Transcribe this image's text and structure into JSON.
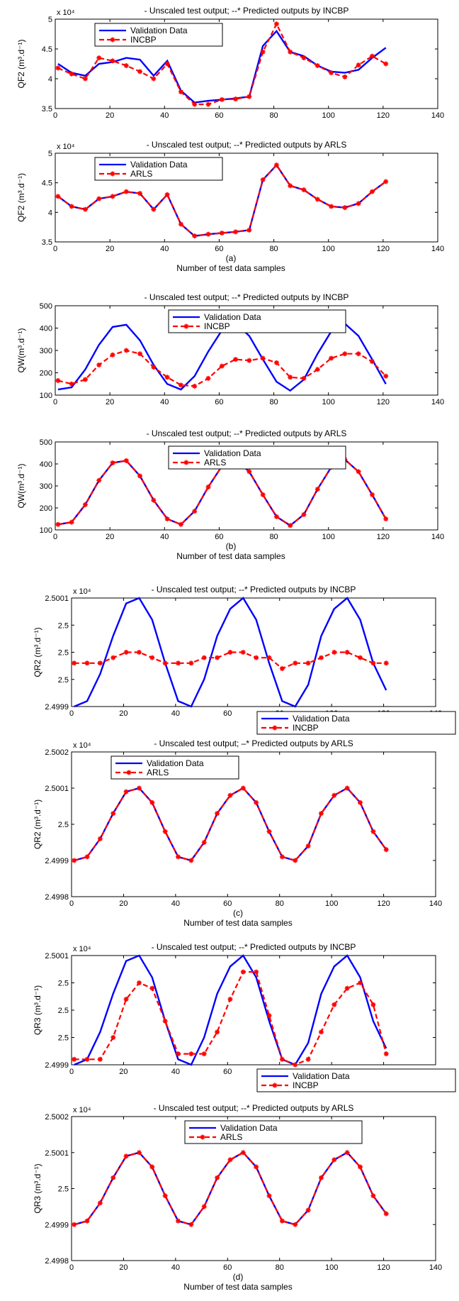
{
  "chart_data": [
    {
      "type": "line",
      "title": "- Unscaled test output; --* Predicted outputs by INCBP",
      "ylabel": "QF2 (m³.d⁻¹)",
      "yexp": "x 10⁴",
      "xlabel": "",
      "panel_caption": "",
      "xlim": [
        0,
        140
      ],
      "ylim": [
        3.5,
        5
      ],
      "xticks": [
        0,
        20,
        40,
        60,
        80,
        100,
        120,
        140
      ],
      "yticks": [
        3.5,
        4,
        4.5,
        5
      ],
      "ytick_labels": [
        "3.5",
        "4",
        "4.5",
        "5"
      ],
      "legend_position": "top-left",
      "x": [
        1,
        6,
        11,
        16,
        21,
        26,
        31,
        36,
        41,
        46,
        51,
        56,
        61,
        66,
        71,
        76,
        81,
        86,
        91,
        96,
        101,
        106,
        111,
        116,
        121
      ],
      "series": [
        {
          "name": "Validation Data",
          "color": "#0000ff",
          "style": "solid",
          "values": [
            4.25,
            4.1,
            4.05,
            4.25,
            4.28,
            4.35,
            4.32,
            4.05,
            4.3,
            3.8,
            3.6,
            3.63,
            3.65,
            3.67,
            3.7,
            4.55,
            4.8,
            4.45,
            4.38,
            4.22,
            4.12,
            4.1,
            4.15,
            4.35,
            4.52
          ]
        },
        {
          "name": "INCBP",
          "color": "#ff0000",
          "style": "dashed",
          "marker": "*",
          "values": [
            4.18,
            4.08,
            4.0,
            4.35,
            4.3,
            4.22,
            4.12,
            4.0,
            4.25,
            3.78,
            3.57,
            3.57,
            3.65,
            3.66,
            3.7,
            4.45,
            4.92,
            4.45,
            4.35,
            4.22,
            4.1,
            4.03,
            4.23,
            4.38,
            4.25
          ]
        }
      ]
    },
    {
      "type": "line",
      "title": "- Unscaled test output; --* Predicted outputs by ARLS",
      "ylabel": "QF2 (m³.d⁻¹)",
      "yexp": "x 10⁴",
      "xlabel": "Number of test data samples",
      "panel_caption": "(a)",
      "xlim": [
        0,
        140
      ],
      "ylim": [
        3.5,
        5
      ],
      "xticks": [
        0,
        20,
        40,
        60,
        80,
        100,
        120,
        140
      ],
      "yticks": [
        3.5,
        4,
        4.5,
        5
      ],
      "ytick_labels": [
        "3.5",
        "4",
        "4.5",
        "5"
      ],
      "legend_position": "top-left",
      "x": [
        1,
        6,
        11,
        16,
        21,
        26,
        31,
        36,
        41,
        46,
        51,
        56,
        61,
        66,
        71,
        76,
        81,
        86,
        91,
        96,
        101,
        106,
        111,
        116,
        121
      ],
      "series": [
        {
          "name": "Validation Data",
          "color": "#0000ff",
          "style": "solid",
          "values": [
            4.27,
            4.1,
            4.05,
            4.23,
            4.27,
            4.35,
            4.32,
            4.05,
            4.3,
            3.8,
            3.6,
            3.63,
            3.65,
            3.67,
            3.7,
            4.55,
            4.8,
            4.45,
            4.38,
            4.22,
            4.1,
            4.08,
            4.15,
            4.35,
            4.52
          ]
        },
        {
          "name": "ARLS",
          "color": "#ff0000",
          "style": "dashed",
          "marker": "*",
          "values": [
            4.27,
            4.1,
            4.05,
            4.23,
            4.27,
            4.35,
            4.32,
            4.05,
            4.3,
            3.8,
            3.6,
            3.63,
            3.65,
            3.67,
            3.7,
            4.55,
            4.8,
            4.45,
            4.38,
            4.22,
            4.1,
            4.08,
            4.15,
            4.35,
            4.52
          ]
        }
      ]
    },
    {
      "type": "line",
      "title": "- Unscaled test output; --* Predicted outputs by INCBP",
      "ylabel": "QW(m³.d⁻¹)",
      "yexp": "",
      "xlabel": "",
      "panel_caption": "",
      "xlim": [
        0,
        140
      ],
      "ylim": [
        100,
        500
      ],
      "xticks": [
        0,
        20,
        40,
        60,
        80,
        100,
        120,
        140
      ],
      "yticks": [
        100,
        200,
        300,
        400,
        500
      ],
      "ytick_labels": [
        "100",
        "200",
        "300",
        "400",
        "500"
      ],
      "legend_position": "top-center",
      "x": [
        1,
        6,
        11,
        16,
        21,
        26,
        31,
        36,
        41,
        46,
        51,
        56,
        61,
        66,
        71,
        76,
        81,
        86,
        91,
        96,
        101,
        106,
        111,
        116,
        121
      ],
      "series": [
        {
          "name": "Validation Data",
          "color": "#0000ff",
          "style": "solid",
          "values": [
            125,
            135,
            215,
            325,
            405,
            415,
            345,
            235,
            150,
            125,
            185,
            295,
            390,
            420,
            365,
            260,
            160,
            120,
            170,
            285,
            385,
            420,
            365,
            260,
            150
          ]
        },
        {
          "name": "INCBP",
          "color": "#ff0000",
          "style": "dashed",
          "marker": "*",
          "values": [
            165,
            150,
            170,
            235,
            280,
            300,
            285,
            225,
            180,
            145,
            140,
            175,
            230,
            260,
            255,
            265,
            245,
            180,
            175,
            215,
            265,
            285,
            285,
            250,
            185
          ]
        }
      ]
    },
    {
      "type": "line",
      "title": "- Unscaled test output; --* Predicted outputs by ARLS",
      "ylabel": "QW(m³.d⁻¹)",
      "yexp": "",
      "xlabel": "Number of test data samples",
      "panel_caption": "(b)",
      "xlim": [
        0,
        140
      ],
      "ylim": [
        100,
        500
      ],
      "xticks": [
        0,
        20,
        40,
        60,
        80,
        100,
        120,
        140
      ],
      "yticks": [
        100,
        200,
        300,
        400,
        500
      ],
      "ytick_labels": [
        "100",
        "200",
        "300",
        "400",
        "500"
      ],
      "legend_position": "top-center",
      "x": [
        1,
        6,
        11,
        16,
        21,
        26,
        31,
        36,
        41,
        46,
        51,
        56,
        61,
        66,
        71,
        76,
        81,
        86,
        91,
        96,
        101,
        106,
        111,
        116,
        121
      ],
      "series": [
        {
          "name": "Validation Data",
          "color": "#0000ff",
          "style": "solid",
          "values": [
            125,
            135,
            215,
            325,
            405,
            415,
            345,
            235,
            150,
            125,
            185,
            295,
            390,
            420,
            365,
            260,
            160,
            120,
            170,
            285,
            385,
            420,
            365,
            260,
            150
          ]
        },
        {
          "name": "ARLS",
          "color": "#ff0000",
          "style": "dashed",
          "marker": "*",
          "values": [
            125,
            135,
            215,
            325,
            405,
            415,
            345,
            235,
            150,
            125,
            185,
            295,
            390,
            420,
            365,
            260,
            160,
            120,
            170,
            285,
            385,
            420,
            365,
            260,
            150
          ]
        }
      ]
    },
    {
      "type": "line",
      "title": "- Unscaled test output; --* Predicted outputs by INCBP",
      "ylabel": "QR2 (m³.d⁻¹)",
      "yexp": "x 10⁴",
      "xlabel": "",
      "panel_caption": "",
      "xlim": [
        0,
        140
      ],
      "ylim": [
        2.4999,
        2.5001
      ],
      "xticks": [
        0,
        20,
        40,
        60,
        80,
        100,
        120,
        140
      ],
      "yticks": [
        2.4999,
        2.49995,
        2.5,
        2.50005,
        2.5001
      ],
      "ytick_labels": [
        "2.4999",
        "2.5",
        "2.5",
        "2.5",
        "2.5001"
      ],
      "legend_position": "bottom-right",
      "x": [
        1,
        6,
        11,
        16,
        21,
        26,
        31,
        36,
        41,
        46,
        51,
        56,
        61,
        66,
        71,
        76,
        81,
        86,
        91,
        96,
        101,
        106,
        111,
        116,
        121
      ],
      "series": [
        {
          "name": "Validation Data",
          "color": "#0000ff",
          "style": "solid",
          "values": [
            2.4999,
            2.49991,
            2.49996,
            2.50003,
            2.50009,
            2.5001,
            2.50006,
            2.49998,
            2.49991,
            2.4999,
            2.49995,
            2.50003,
            2.50008,
            2.5001,
            2.50006,
            2.49998,
            2.49991,
            2.4999,
            2.49994,
            2.50003,
            2.50008,
            2.5001,
            2.50006,
            2.49998,
            2.49993
          ]
        },
        {
          "name": "INCBP",
          "color": "#ff0000",
          "style": "dashed",
          "marker": "*",
          "values": [
            2.49998,
            2.49998,
            2.49998,
            2.49999,
            2.5,
            2.5,
            2.49999,
            2.49998,
            2.49998,
            2.49998,
            2.49999,
            2.49999,
            2.5,
            2.5,
            2.49999,
            2.49999,
            2.49997,
            2.49998,
            2.49998,
            2.49999,
            2.5,
            2.5,
            2.49999,
            2.49998,
            2.49998
          ]
        }
      ]
    },
    {
      "type": "line",
      "title": "- Unscaled test output; –* Predicted outputs by ARLS",
      "ylabel": "QR2 (m³.d⁻¹)",
      "yexp": "x 10⁴",
      "xlabel": "Number of test data samples",
      "panel_caption": "(c)",
      "xlim": [
        0,
        140
      ],
      "ylim": [
        2.4998,
        2.5002
      ],
      "xticks": [
        0,
        20,
        40,
        60,
        80,
        100,
        120,
        140
      ],
      "yticks": [
        2.4998,
        2.4999,
        2.5,
        2.5001,
        2.5002
      ],
      "ytick_labels": [
        "2.4998",
        "2.4999",
        "2.5",
        "2.5001",
        "2.5002"
      ],
      "legend_position": "top-left",
      "x": [
        1,
        6,
        11,
        16,
        21,
        26,
        31,
        36,
        41,
        46,
        51,
        56,
        61,
        66,
        71,
        76,
        81,
        86,
        91,
        96,
        101,
        106,
        111,
        116,
        121
      ],
      "series": [
        {
          "name": "Validation Data",
          "color": "#0000ff",
          "style": "solid",
          "values": [
            2.4999,
            2.49991,
            2.49996,
            2.50003,
            2.50009,
            2.5001,
            2.50006,
            2.49998,
            2.49991,
            2.4999,
            2.49995,
            2.50003,
            2.50008,
            2.5001,
            2.50006,
            2.49998,
            2.49991,
            2.4999,
            2.49994,
            2.50003,
            2.50008,
            2.5001,
            2.50006,
            2.49998,
            2.49993
          ]
        },
        {
          "name": "ARLS",
          "color": "#ff0000",
          "style": "dashed",
          "marker": "*",
          "values": [
            2.4999,
            2.49991,
            2.49996,
            2.50003,
            2.50009,
            2.5001,
            2.50006,
            2.49998,
            2.49991,
            2.4999,
            2.49995,
            2.50003,
            2.50008,
            2.5001,
            2.50006,
            2.49998,
            2.49991,
            2.4999,
            2.49994,
            2.50003,
            2.50008,
            2.5001,
            2.50006,
            2.49998,
            2.49993
          ]
        }
      ]
    },
    {
      "type": "line",
      "title": "- Unscaled test output; --* Predicted outputs by INCBP",
      "ylabel": "QR3 (m³.d⁻¹)",
      "yexp": "x 10⁴",
      "xlabel": "",
      "panel_caption": "",
      "xlim": [
        0,
        140
      ],
      "ylim": [
        2.4999,
        2.5001
      ],
      "xticks": [
        0,
        20,
        40,
        60,
        80,
        100,
        120,
        140
      ],
      "yticks": [
        2.4999,
        2.49995,
        2.5,
        2.50005,
        2.5001
      ],
      "ytick_labels": [
        "2.4999",
        "2.5",
        "2.5",
        "2.5",
        "2.5001"
      ],
      "legend_position": "bottom-right",
      "x": [
        1,
        6,
        11,
        16,
        21,
        26,
        31,
        36,
        41,
        46,
        51,
        56,
        61,
        66,
        71,
        76,
        81,
        86,
        91,
        96,
        101,
        106,
        111,
        116,
        121
      ],
      "series": [
        {
          "name": "Validation Data",
          "color": "#0000ff",
          "style": "solid",
          "values": [
            2.4999,
            2.49991,
            2.49996,
            2.50003,
            2.50009,
            2.5001,
            2.50006,
            2.49998,
            2.49991,
            2.4999,
            2.49995,
            2.50003,
            2.50008,
            2.5001,
            2.50006,
            2.49998,
            2.49991,
            2.4999,
            2.49994,
            2.50003,
            2.50008,
            2.5001,
            2.50006,
            2.49998,
            2.49993
          ]
        },
        {
          "name": "INCBP",
          "color": "#ff0000",
          "style": "dashed",
          "marker": "*",
          "values": [
            2.49991,
            2.49991,
            2.49991,
            2.49995,
            2.50002,
            2.50005,
            2.50004,
            2.49998,
            2.49992,
            2.49992,
            2.49992,
            2.49996,
            2.50002,
            2.50007,
            2.50007,
            2.49999,
            2.49991,
            2.4999,
            2.49991,
            2.49996,
            2.50001,
            2.50004,
            2.50005,
            2.50001,
            2.49992
          ]
        }
      ]
    },
    {
      "type": "line",
      "title": "- Unscaled test output; --* Predicted outputs by ARLS",
      "ylabel": "QR3 (m³.d⁻¹)",
      "yexp": "x 10⁴",
      "xlabel": "Number of test data samples",
      "panel_caption": "(d)",
      "xlim": [
        0,
        140
      ],
      "ylim": [
        2.4998,
        2.5002
      ],
      "xticks": [
        0,
        20,
        40,
        60,
        80,
        100,
        120,
        140
      ],
      "yticks": [
        2.4998,
        2.4999,
        2.5,
        2.5001,
        2.5002
      ],
      "ytick_labels": [
        "2.4998",
        "2.4999",
        "2.5",
        "2.5001",
        "2.5002"
      ],
      "legend_position": "top-center",
      "x": [
        1,
        6,
        11,
        16,
        21,
        26,
        31,
        36,
        41,
        46,
        51,
        56,
        61,
        66,
        71,
        76,
        81,
        86,
        91,
        96,
        101,
        106,
        111,
        116,
        121
      ],
      "series": [
        {
          "name": "Validation Data",
          "color": "#0000ff",
          "style": "solid",
          "values": [
            2.4999,
            2.49991,
            2.49996,
            2.50003,
            2.50009,
            2.5001,
            2.50006,
            2.49998,
            2.49991,
            2.4999,
            2.49995,
            2.50003,
            2.50008,
            2.5001,
            2.50006,
            2.49998,
            2.49991,
            2.4999,
            2.49994,
            2.50003,
            2.50008,
            2.5001,
            2.50006,
            2.49998,
            2.49993
          ]
        },
        {
          "name": "ARLS",
          "color": "#ff0000",
          "style": "dashed",
          "marker": "*",
          "values": [
            2.4999,
            2.49991,
            2.49996,
            2.50003,
            2.50009,
            2.5001,
            2.50006,
            2.49998,
            2.49991,
            2.4999,
            2.49995,
            2.50003,
            2.50008,
            2.5001,
            2.50006,
            2.49998,
            2.49991,
            2.4999,
            2.49994,
            2.50003,
            2.50008,
            2.5001,
            2.50006,
            2.49998,
            2.49993
          ]
        }
      ]
    }
  ]
}
